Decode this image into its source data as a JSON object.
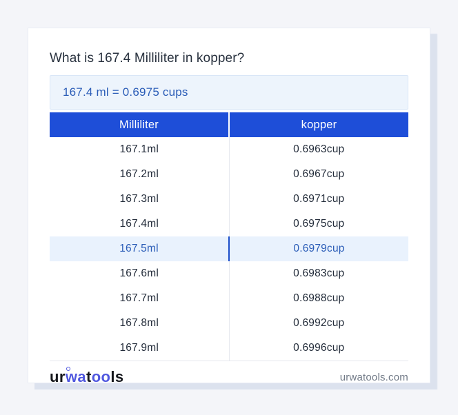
{
  "title": "What is 167.4 Milliliter in kopper?",
  "result": {
    "text": "167.4 ml = 0.6975 cups"
  },
  "table": {
    "columns": [
      "Milliliter",
      "kopper"
    ],
    "rows": [
      {
        "ml": "167.1ml",
        "cup": "0.6963cup",
        "highlighted": false
      },
      {
        "ml": "167.2ml",
        "cup": "0.6967cup",
        "highlighted": false
      },
      {
        "ml": "167.3ml",
        "cup": "0.6971cup",
        "highlighted": false
      },
      {
        "ml": "167.4ml",
        "cup": "0.6975cup",
        "highlighted": false
      },
      {
        "ml": "167.5ml",
        "cup": "0.6979cup",
        "highlighted": true
      },
      {
        "ml": "167.6ml",
        "cup": "0.6983cup",
        "highlighted": false
      },
      {
        "ml": "167.7ml",
        "cup": "0.6988cup",
        "highlighted": false
      },
      {
        "ml": "167.8ml",
        "cup": "0.6992cup",
        "highlighted": false
      },
      {
        "ml": "167.9ml",
        "cup": "0.6996cup",
        "highlighted": false
      }
    ]
  },
  "footer": {
    "logo": {
      "seg1": "ur",
      "seg2": "wa",
      "seg3": "t",
      "seg4": "oo",
      "seg5": "ls"
    },
    "site": "urwatools.com"
  },
  "colors": {
    "page_bg": "#f4f5f9",
    "card_bg": "#ffffff",
    "card_shadow": "#dce2ee",
    "header_bg": "#1e4ed8",
    "header_text": "#ffffff",
    "result_bg": "#edf4fc",
    "result_border": "#d9e6f7",
    "accent_text": "#2a5cb7",
    "highlight_row_bg": "#e9f2fd",
    "highlight_divider": "#1b4dc9",
    "row_text": "#232c3a",
    "column_divider": "#e7eaef",
    "title_text": "#28313e",
    "site_text": "#717a87",
    "logo_dark": "#15171c",
    "logo_blue": "#5058df"
  }
}
